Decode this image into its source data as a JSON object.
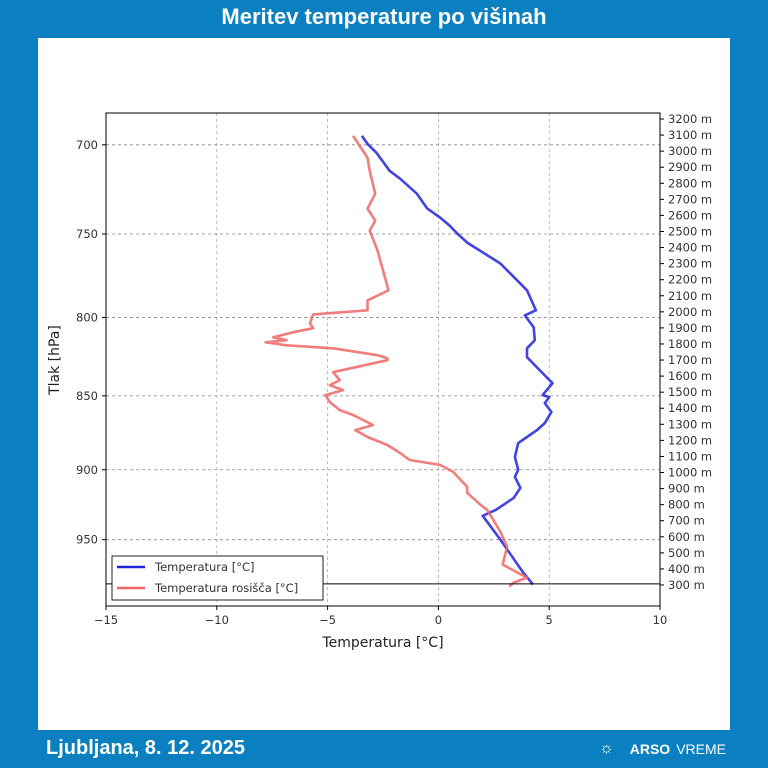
{
  "header": {
    "title": "Meritev temperature po višinah"
  },
  "footer": {
    "location_date": "Ljubljana, 8. 12. 2025",
    "brand_bold": "ARSO",
    "brand_light": "VREME",
    "brand_icon": "sun-icon"
  },
  "colors": {
    "background": "#0a80c0",
    "temperature": "#2222dd",
    "dewpoint": "#f06666"
  },
  "chart_data": {
    "type": "line",
    "xlabel": "Temperatura [°C]",
    "ylabel": "Tlak [hPa]",
    "xlim": [
      -15,
      10
    ],
    "ylim": [
      1000,
      683
    ],
    "y_scale": "log",
    "grid": true,
    "legend": "bottom-left",
    "x_ticks": [
      "−15",
      "−10",
      "−5",
      "0",
      "5",
      "10"
    ],
    "x_tick_values": [
      -15,
      -10,
      -5,
      0,
      5,
      10
    ],
    "y_ticks": [
      "700",
      "750",
      "800",
      "850",
      "900",
      "950"
    ],
    "y_tick_values": [
      700,
      750,
      800,
      850,
      900,
      950
    ],
    "surface_pressure": 983,
    "height_axis": {
      "min_m": 300,
      "max_m": 3200,
      "step_m": 100,
      "unit": "m"
    },
    "series": [
      {
        "name": "Temperatura [°C]",
        "color": "#2222dd",
        "points": [
          [
            695.2,
            -3.45
          ],
          [
            699.5,
            -3.2
          ],
          [
            704.3,
            -2.8
          ],
          [
            714.2,
            -2.2
          ],
          [
            718.6,
            -1.73
          ],
          [
            727.0,
            -0.97
          ],
          [
            735.4,
            -0.5
          ],
          [
            740.5,
            0.07
          ],
          [
            745.1,
            0.5
          ],
          [
            749.7,
            0.85
          ],
          [
            755.0,
            1.3
          ],
          [
            767.3,
            2.8
          ],
          [
            783.4,
            4.0
          ],
          [
            789.5,
            4.2
          ],
          [
            795.6,
            4.4
          ],
          [
            798.7,
            3.9
          ],
          [
            806.1,
            4.3
          ],
          [
            814.2,
            4.35
          ],
          [
            819.3,
            4.0
          ],
          [
            825.0,
            4.0
          ],
          [
            835.2,
            4.7
          ],
          [
            841.7,
            5.15
          ],
          [
            849.5,
            4.7
          ],
          [
            850.8,
            5.0
          ],
          [
            854.8,
            4.8
          ],
          [
            860.7,
            5.1
          ],
          [
            868.1,
            4.8
          ],
          [
            872.8,
            4.45
          ],
          [
            877.5,
            4.0
          ],
          [
            881.6,
            3.6
          ],
          [
            891.1,
            3.45
          ],
          [
            900,
            3.6
          ],
          [
            905.0,
            3.45
          ],
          [
            912.7,
            3.7
          ],
          [
            919.8,
            3.4
          ],
          [
            928.3,
            2.6
          ],
          [
            932.6,
            2.0
          ],
          [
            950,
            2.8
          ],
          [
            973.8,
            3.8
          ],
          [
            983.6,
            4.27
          ]
        ]
      },
      {
        "name": "Temperatura rosišča [°C]",
        "color": "#f06666",
        "points": [
          [
            695.2,
            -3.85
          ],
          [
            707.1,
            -3.2
          ],
          [
            714.2,
            -3.1
          ],
          [
            727.0,
            -2.85
          ],
          [
            735.4,
            -3.2
          ],
          [
            742.3,
            -2.85
          ],
          [
            748.0,
            -3.1
          ],
          [
            759.6,
            -2.75
          ],
          [
            771.4,
            -2.5
          ],
          [
            783.4,
            -2.25
          ],
          [
            789.5,
            -3.2
          ],
          [
            795.6,
            -3.2
          ],
          [
            798.1,
            -5.65
          ],
          [
            803.6,
            -5.8
          ],
          [
            806.7,
            -5.65
          ],
          [
            809.2,
            -6.55
          ],
          [
            812.4,
            -7.45
          ],
          [
            814.2,
            -6.85
          ],
          [
            815.5,
            -7.8
          ],
          [
            817.4,
            -6.85
          ],
          [
            819.3,
            -4.75
          ],
          [
            823.7,
            -2.75
          ],
          [
            825.6,
            -2.3
          ],
          [
            826.9,
            -2.3
          ],
          [
            834.6,
            -4.75
          ],
          [
            839.7,
            -4.45
          ],
          [
            843.0,
            -4.9
          ],
          [
            846.2,
            -4.3
          ],
          [
            849.5,
            -5.1
          ],
          [
            854.1,
            -4.9
          ],
          [
            859.4,
            -4.45
          ],
          [
            862.7,
            -3.85
          ],
          [
            869.4,
            -2.95
          ],
          [
            872.8,
            -3.75
          ],
          [
            877.5,
            -3.2
          ],
          [
            882.9,
            -2.3
          ],
          [
            888.4,
            -1.73
          ],
          [
            893.2,
            -1.3
          ],
          [
            896.6,
            0.07
          ],
          [
            901.5,
            0.67
          ],
          [
            912.0,
            1.3
          ],
          [
            916.2,
            1.3
          ],
          [
            924.7,
            1.9
          ],
          [
            928.3,
            2.2
          ],
          [
            944.2,
            2.8
          ],
          [
            955.2,
            3.1
          ],
          [
            968.5,
            2.9
          ],
          [
            978.3,
            4.0
          ],
          [
            982.1,
            3.4
          ],
          [
            985.1,
            3.2
          ]
        ]
      }
    ]
  }
}
